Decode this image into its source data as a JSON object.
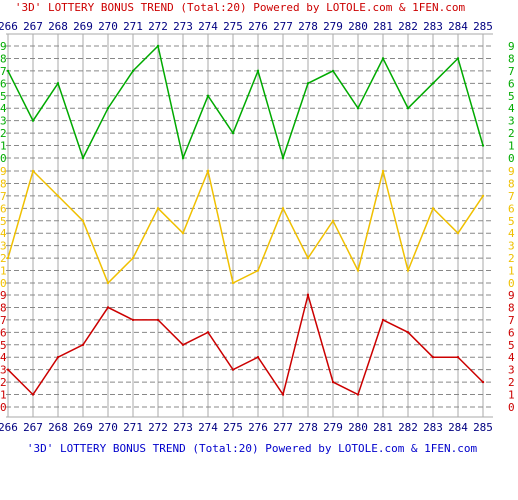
{
  "header_title": "'3D' LOTTERY BONUS TREND (Total:20)  Powered by LOTOLE.com & 1FEN.com",
  "footer_title": "'3D' LOTTERY BONUS TREND (Total:20)  Powered by LOTOLE.com & 1FEN.com",
  "colors": {
    "header": "#cc0000",
    "footer": "#0000cc",
    "axis_text": "#000080",
    "band_top": "#00aa00",
    "band_middle": "#f0c000",
    "band_bottom": "#cc0000",
    "grid_vertical": "#aaaaaa",
    "grid_horizontal": "#888888"
  },
  "chart_data": {
    "type": "line",
    "x": [
      "266",
      "267",
      "268",
      "269",
      "270",
      "271",
      "272",
      "273",
      "274",
      "275",
      "276",
      "277",
      "278",
      "279",
      "280",
      "281",
      "282",
      "283",
      "284",
      "285"
    ],
    "digit_ticks": [
      "0",
      "1",
      "2",
      "3",
      "4",
      "5",
      "6",
      "7",
      "8",
      "9"
    ],
    "ylim": [
      0,
      9
    ],
    "grid": true,
    "series": [
      {
        "band": "top",
        "color": "#00aa00",
        "values": [
          7,
          3,
          6,
          0,
          4,
          7,
          9,
          0,
          5,
          2,
          7,
          0,
          6,
          7,
          4,
          8,
          4,
          6,
          8,
          1
        ]
      },
      {
        "band": "middle",
        "color": "#f0c000",
        "values": [
          2,
          9,
          7,
          5,
          0,
          2,
          6,
          4,
          9,
          0,
          1,
          6,
          2,
          5,
          1,
          9,
          1,
          6,
          4,
          7
        ]
      },
      {
        "band": "bottom",
        "color": "#cc0000",
        "values": [
          3,
          1,
          4,
          5,
          8,
          7,
          7,
          5,
          6,
          3,
          4,
          1,
          9,
          2,
          1,
          7,
          6,
          4,
          4,
          2
        ]
      }
    ]
  }
}
